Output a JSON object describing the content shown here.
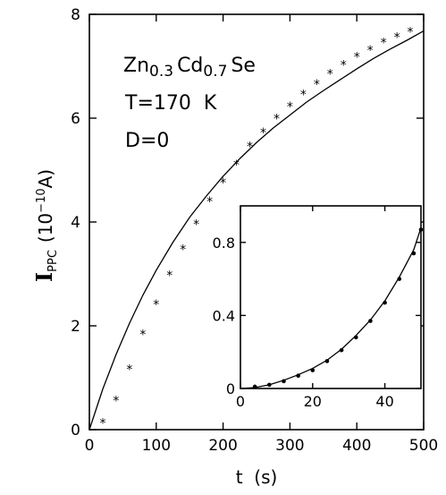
{
  "chart_data": [
    {
      "type": "scatter",
      "panel": "main",
      "xlabel": "t  (s)",
      "ylabel_main": "I",
      "ylabel_sub": "PPC",
      "ylabel_units": "(10",
      "ylabel_exp": "−10",
      "ylabel_unit_tail": "A)",
      "xlim": [
        0,
        500
      ],
      "ylim": [
        0,
        8
      ],
      "xticks": [
        0,
        100,
        200,
        300,
        400,
        500
      ],
      "yticks": [
        0,
        2,
        4,
        6,
        8
      ],
      "annotations": {
        "composition_prefix": "Zn",
        "composition_zn_sub": "0.3",
        "composition_cd": "Cd",
        "composition_cd_sub": "0.7",
        "composition_suffix": "Se",
        "temperature": "T=170  K",
        "diffusion": "D=0"
      },
      "series": [
        {
          "style": "markers",
          "marker": "*",
          "x": [
            20,
            40,
            60,
            80,
            100,
            120,
            140,
            160,
            180,
            200,
            220,
            240,
            260,
            280,
            300,
            320,
            340,
            360,
            380,
            400,
            420,
            440,
            460,
            480
          ],
          "y": [
            0.15,
            0.58,
            1.18,
            1.85,
            2.43,
            2.99,
            3.49,
            3.97,
            4.41,
            4.78,
            5.12,
            5.47,
            5.74,
            6.01,
            6.24,
            6.47,
            6.67,
            6.87,
            7.04,
            7.2,
            7.33,
            7.47,
            7.58,
            7.68
          ]
        },
        {
          "style": "line",
          "x": [
            0,
            20,
            40,
            60,
            80,
            100,
            125,
            150,
            175,
            200,
            225,
            250,
            275,
            300,
            325,
            350,
            375,
            400,
            425,
            450,
            475,
            500
          ],
          "y": [
            0,
            0.78,
            1.45,
            2.05,
            2.59,
            3.07,
            3.61,
            4.09,
            4.5,
            4.88,
            5.22,
            5.53,
            5.81,
            6.06,
            6.31,
            6.53,
            6.74,
            6.95,
            7.15,
            7.33,
            7.5,
            7.68
          ]
        }
      ]
    },
    {
      "type": "scatter",
      "panel": "inset",
      "xlim": [
        0,
        50
      ],
      "ylim": [
        0,
        1.0
      ],
      "xticks": [
        0,
        20,
        40
      ],
      "yticks": [
        0,
        0.4,
        0.8
      ],
      "ytick_labels": [
        "0",
        "0.4",
        "0.8"
      ],
      "series": [
        {
          "style": "markers",
          "marker": "dot",
          "x": [
            4,
            8,
            12,
            16,
            20,
            24,
            28,
            32,
            36,
            40,
            44,
            48,
            50
          ],
          "y": [
            0.01,
            0.02,
            0.04,
            0.07,
            0.1,
            0.15,
            0.21,
            0.28,
            0.37,
            0.47,
            0.6,
            0.74,
            0.87
          ]
        },
        {
          "style": "line",
          "x": [
            0,
            4,
            8,
            12,
            16,
            20,
            24,
            28,
            32,
            36,
            40,
            44,
            48,
            50
          ],
          "y": [
            0,
            0.005,
            0.02,
            0.045,
            0.075,
            0.11,
            0.155,
            0.215,
            0.29,
            0.375,
            0.48,
            0.61,
            0.76,
            0.88
          ]
        }
      ]
    }
  ]
}
